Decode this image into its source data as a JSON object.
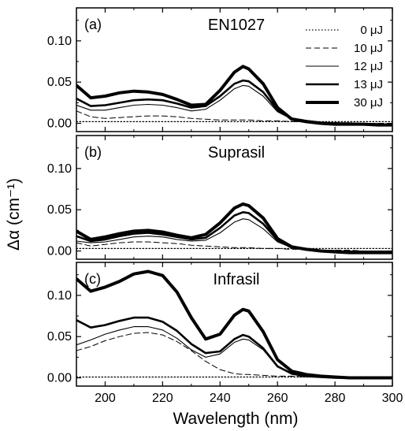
{
  "chart_data": {
    "type": "line",
    "xlabel": "Wavelength (nm)",
    "ylabel": "Δα (cm⁻¹)",
    "xlim": [
      190,
      300
    ],
    "ylim": [
      -0.01,
      0.14
    ],
    "x_ticks": [
      "200",
      "220",
      "240",
      "260",
      "280",
      "300"
    ],
    "y_ticks": [
      "0.00",
      "0.05",
      "0.10"
    ],
    "legend": {
      "placement": "top-right",
      "entries": [
        {
          "label": "0 μJ",
          "style": "dotted"
        },
        {
          "label": "10 μJ",
          "style": "dashed"
        },
        {
          "label": "12 μJ",
          "style": "thin"
        },
        {
          "label": "13 μJ",
          "style": "thick"
        },
        {
          "label": "30 μJ",
          "style": "thickest"
        }
      ]
    },
    "x": [
      190,
      195,
      200,
      205,
      210,
      215,
      220,
      225,
      230,
      235,
      240,
      245,
      248,
      250,
      255,
      260,
      265,
      270,
      275,
      280,
      285,
      290,
      295,
      300
    ],
    "panels": [
      {
        "tag": "(a)",
        "title": "EN1027",
        "series": [
          {
            "label": "0 μJ",
            "values": [
              0.002,
              0.002,
              0.002,
              0.002,
              0.002,
              0.002,
              0.002,
              0.002,
              0.002,
              0.002,
              0.002,
              0.002,
              0.002,
              0.002,
              0.002,
              0.002,
              0.002,
              0.002,
              0.002,
              0.002,
              0.002,
              0.002,
              0.002,
              0.002
            ]
          },
          {
            "label": "10 μJ",
            "values": [
              0.015,
              0.008,
              0.006,
              0.007,
              0.008,
              0.009,
              0.009,
              0.008,
              0.006,
              0.005,
              0.004,
              0.004,
              0.004,
              0.004,
              0.003,
              0.003,
              0.002,
              0.002,
              0.001,
              0.001,
              0.0,
              0.0,
              0.0,
              0.0
            ]
          },
          {
            "label": "12 μJ",
            "values": [
              0.022,
              0.016,
              0.016,
              0.019,
              0.022,
              0.023,
              0.022,
              0.019,
              0.015,
              0.017,
              0.028,
              0.042,
              0.046,
              0.045,
              0.033,
              0.014,
              0.005,
              0.002,
              0.001,
              0.0,
              0.0,
              0.0,
              -0.001,
              -0.001
            ]
          },
          {
            "label": "13 μJ",
            "values": [
              0.03,
              0.021,
              0.022,
              0.025,
              0.028,
              0.029,
              0.028,
              0.024,
              0.019,
              0.021,
              0.033,
              0.048,
              0.052,
              0.051,
              0.038,
              0.016,
              0.006,
              0.003,
              0.001,
              0.0,
              0.0,
              -0.001,
              -0.001,
              -0.002
            ]
          },
          {
            "label": "30 μJ",
            "values": [
              0.046,
              0.031,
              0.033,
              0.037,
              0.039,
              0.038,
              0.035,
              0.029,
              0.022,
              0.023,
              0.04,
              0.062,
              0.069,
              0.066,
              0.048,
              0.019,
              0.005,
              0.002,
              0.0,
              -0.001,
              -0.001,
              -0.001,
              -0.002,
              -0.002
            ]
          }
        ]
      },
      {
        "tag": "(b)",
        "title": "Suprasil",
        "series": [
          {
            "label": "0 μJ",
            "values": [
              0.003,
              0.003,
              0.003,
              0.003,
              0.003,
              0.003,
              0.003,
              0.003,
              0.003,
              0.003,
              0.003,
              0.003,
              0.003,
              0.003,
              0.003,
              0.003,
              0.003,
              0.003,
              0.003,
              0.003,
              0.003,
              0.003,
              0.003,
              0.003
            ]
          },
          {
            "label": "10 μJ",
            "values": [
              0.01,
              0.006,
              0.008,
              0.01,
              0.011,
              0.011,
              0.01,
              0.009,
              0.007,
              0.006,
              0.005,
              0.004,
              0.004,
              0.004,
              0.003,
              0.003,
              0.002,
              0.002,
              0.001,
              0.001,
              0.001,
              0.0,
              0.0,
              0.0
            ]
          },
          {
            "label": "12 μJ",
            "values": [
              0.012,
              0.01,
              0.011,
              0.014,
              0.017,
              0.018,
              0.017,
              0.014,
              0.012,
              0.013,
              0.022,
              0.035,
              0.039,
              0.038,
              0.027,
              0.011,
              0.004,
              0.002,
              0.001,
              0.0,
              0.0,
              0.0,
              0.0,
              0.0
            ]
          },
          {
            "label": "13 μJ",
            "values": [
              0.018,
              0.012,
              0.014,
              0.018,
              0.021,
              0.022,
              0.02,
              0.017,
              0.014,
              0.016,
              0.028,
              0.043,
              0.047,
              0.046,
              0.033,
              0.013,
              0.004,
              0.002,
              0.0,
              0.0,
              -0.001,
              -0.001,
              -0.001,
              -0.002
            ]
          },
          {
            "label": "30 μJ",
            "values": [
              0.024,
              0.014,
              0.017,
              0.021,
              0.024,
              0.025,
              0.023,
              0.019,
              0.016,
              0.02,
              0.034,
              0.052,
              0.057,
              0.055,
              0.04,
              0.015,
              0.005,
              0.002,
              0.0,
              -0.001,
              -0.002,
              -0.002,
              -0.002,
              -0.002
            ]
          }
        ]
      },
      {
        "tag": "(c)",
        "title": "Infrasil",
        "series": [
          {
            "label": "0 μJ",
            "values": [
              0.001,
              0.001,
              0.001,
              0.001,
              0.001,
              0.001,
              0.001,
              0.001,
              0.001,
              0.001,
              0.001,
              0.001,
              0.001,
              0.001,
              0.001,
              0.001,
              0.001,
              0.001,
              0.001,
              0.001,
              0.001,
              0.001,
              0.001,
              0.001
            ]
          },
          {
            "label": "10 μJ",
            "values": [
              0.033,
              0.038,
              0.045,
              0.05,
              0.054,
              0.055,
              0.052,
              0.044,
              0.033,
              0.02,
              0.01,
              0.005,
              0.004,
              0.004,
              0.003,
              0.002,
              0.002,
              0.001,
              0.001,
              0.001,
              0.0,
              0.0,
              0.0,
              0.0
            ]
          },
          {
            "label": "12 μJ",
            "values": [
              0.04,
              0.046,
              0.053,
              0.058,
              0.062,
              0.062,
              0.058,
              0.048,
              0.034,
              0.025,
              0.029,
              0.043,
              0.047,
              0.046,
              0.034,
              0.013,
              0.005,
              0.002,
              0.001,
              0.0,
              0.0,
              0.0,
              0.0,
              0.0
            ]
          },
          {
            "label": "13 μJ",
            "values": [
              0.07,
              0.061,
              0.064,
              0.069,
              0.073,
              0.073,
              0.068,
              0.057,
              0.041,
              0.03,
              0.032,
              0.047,
              0.052,
              0.05,
              0.036,
              0.014,
              0.005,
              0.002,
              0.001,
              0.0,
              0.0,
              0.0,
              0.0,
              0.0
            ]
          },
          {
            "label": "30 μJ",
            "values": [
              0.12,
              0.105,
              0.11,
              0.117,
              0.126,
              0.129,
              0.124,
              0.104,
              0.073,
              0.047,
              0.053,
              0.076,
              0.083,
              0.081,
              0.056,
              0.022,
              0.008,
              0.004,
              0.002,
              0.001,
              0.0,
              0.0,
              0.0,
              0.0
            ]
          }
        ]
      }
    ]
  }
}
